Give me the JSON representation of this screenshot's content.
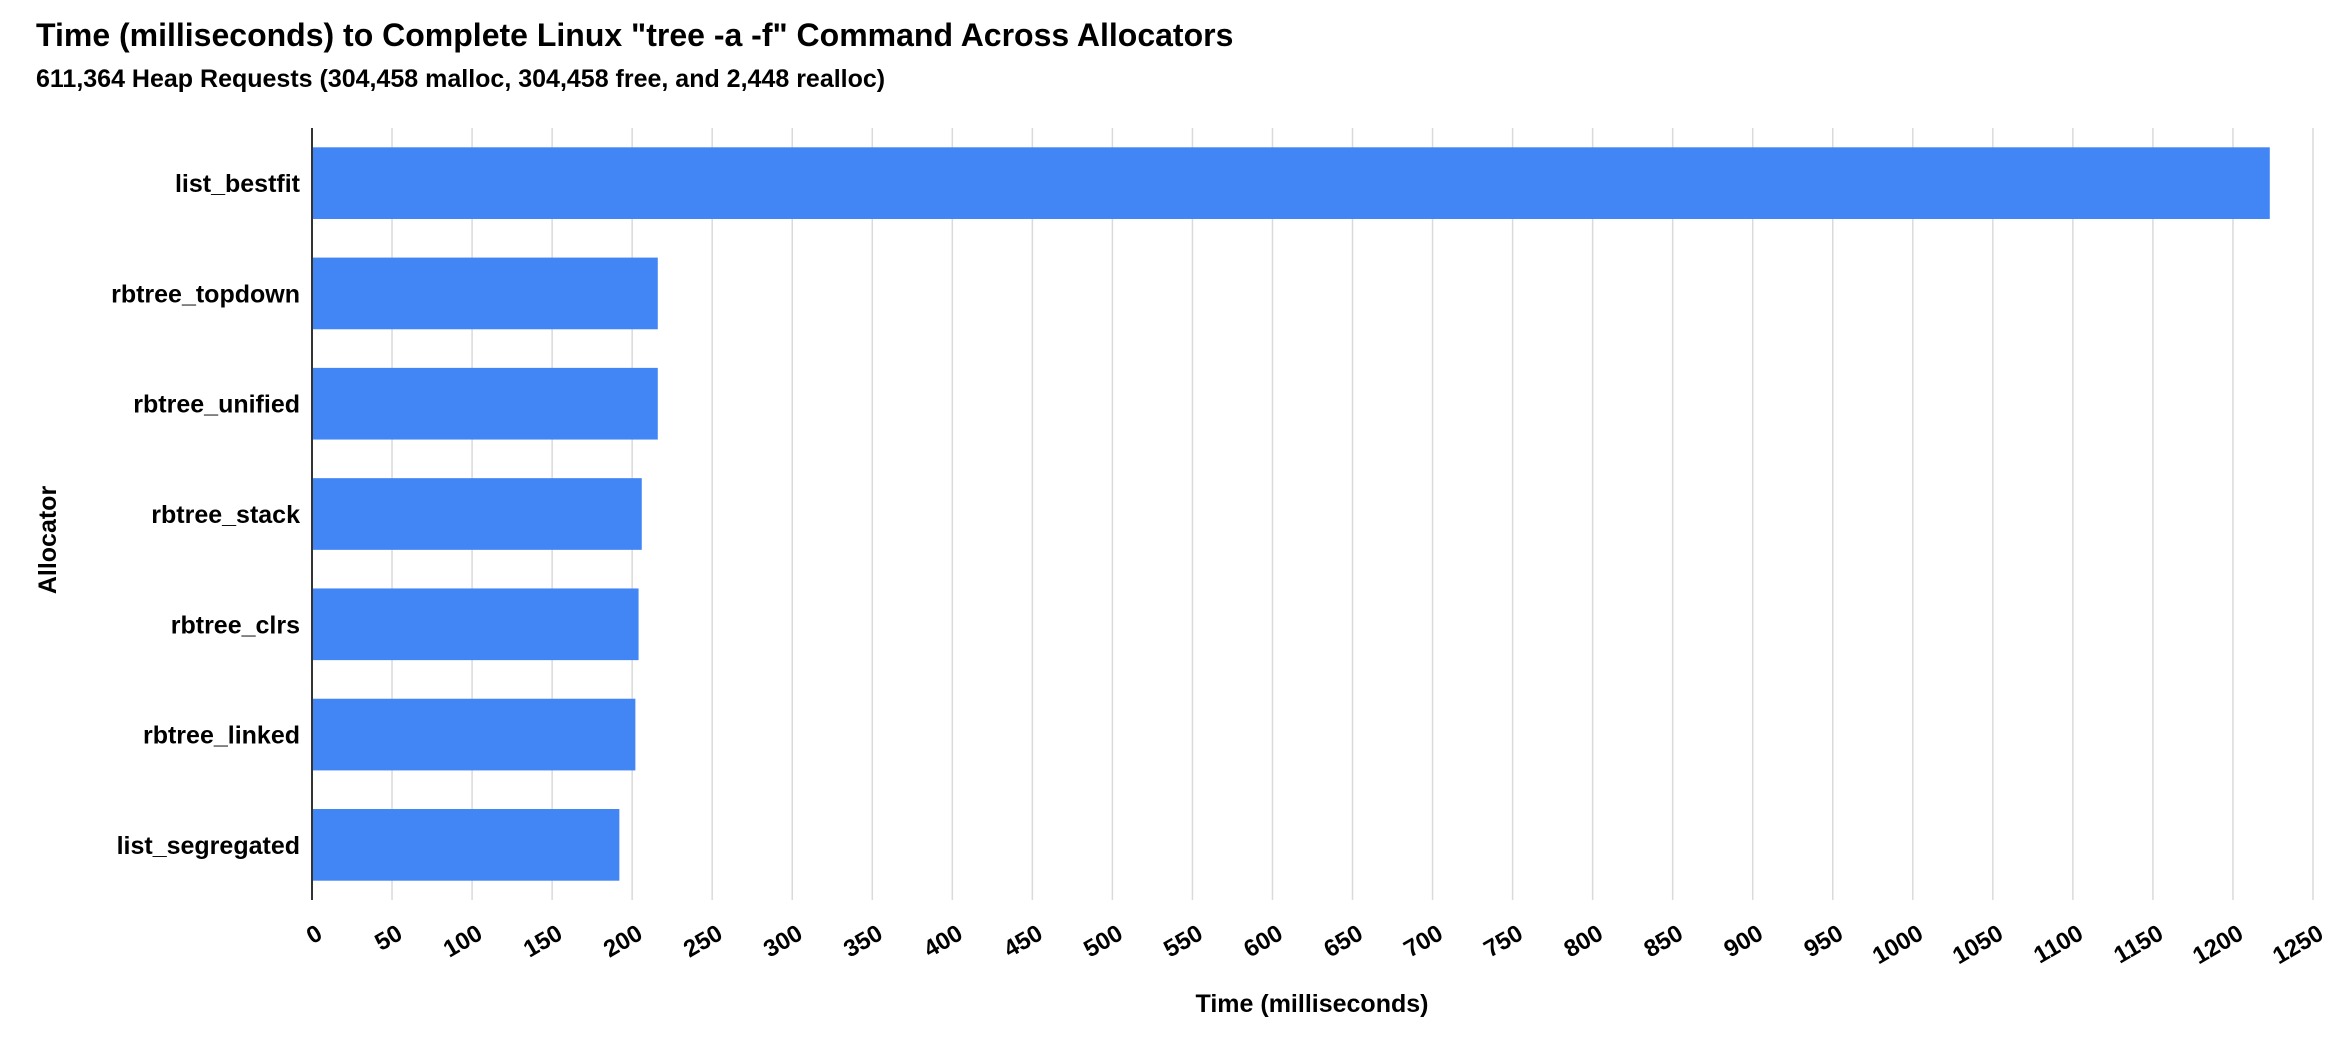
{
  "chart_data": {
    "type": "bar",
    "orientation": "horizontal",
    "title": "Time (milliseconds) to Complete Linux \"tree -a -f\" Command Across Allocators",
    "subtitle": "611,364 Heap Requests (304,458 malloc, 304,458 free, and  2,448 realloc)",
    "xlabel": "Time (milliseconds)",
    "ylabel": "Allocator",
    "categories": [
      "list_bestfit",
      "rbtree_topdown",
      "rbtree_unified",
      "rbtree_stack",
      "rbtree_clrs",
      "rbtree_linked",
      "list_segregated"
    ],
    "values": [
      1223,
      216,
      216,
      206,
      204,
      202,
      192
    ],
    "xlim": [
      0,
      1250
    ],
    "ticks": [
      "0",
      "50",
      "100",
      "150",
      "200",
      "250",
      "300",
      "350",
      "400",
      "450",
      "500",
      "550",
      "600",
      "650",
      "700",
      "750",
      "800",
      "850",
      "900",
      "950",
      "1000",
      "1050",
      "1100",
      "1150",
      "1200",
      "1250"
    ],
    "grid": "vertical",
    "legend": "none",
    "bar_color": "#4285f4"
  }
}
